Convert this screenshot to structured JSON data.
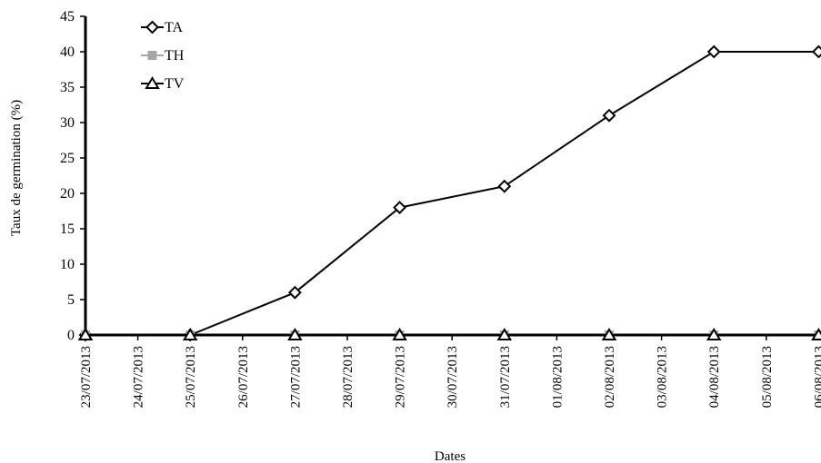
{
  "chart_data": {
    "type": "line",
    "title": "",
    "xlabel": "Dates",
    "ylabel": "Taux de germination (%)",
    "ylim": [
      0,
      45
    ],
    "yticks": [
      0,
      5,
      10,
      15,
      20,
      25,
      30,
      35,
      40,
      45
    ],
    "categories": [
      "23/07/2013",
      "24/07/2013",
      "25/07/2013",
      "26/07/2013",
      "27/07/2013",
      "28/07/2013",
      "29/07/2013",
      "30/07/2013",
      "31/07/2013",
      "01/08/2013",
      "02/08/2013",
      "03/08/2013",
      "04/08/2013",
      "05/08/2013",
      "06/08/2013"
    ],
    "grid": false,
    "legend_position": "top-left",
    "series": [
      {
        "name": "TA",
        "marker": "diamond",
        "color": "#000000",
        "x": [
          "23/07/2013",
          "25/07/2013",
          "27/07/2013",
          "29/07/2013",
          "31/07/2013",
          "02/08/2013",
          "04/08/2013",
          "06/08/2013"
        ],
        "values": [
          0,
          0,
          6,
          18,
          21,
          31,
          40,
          40
        ]
      },
      {
        "name": "TH",
        "marker": "square",
        "color": "#a6a6a6",
        "x": [
          "23/07/2013",
          "25/07/2013",
          "27/07/2013",
          "29/07/2013",
          "31/07/2013",
          "02/08/2013",
          "04/08/2013",
          "06/08/2013"
        ],
        "values": [
          0,
          0,
          0,
          0,
          0,
          0,
          0,
          0
        ]
      },
      {
        "name": "TV",
        "marker": "triangle",
        "color": "#000000",
        "x": [
          "23/07/2013",
          "25/07/2013",
          "27/07/2013",
          "29/07/2013",
          "31/07/2013",
          "02/08/2013",
          "04/08/2013",
          "06/08/2013"
        ],
        "values": [
          0,
          0,
          0,
          0,
          0,
          0,
          0,
          0
        ]
      }
    ]
  }
}
